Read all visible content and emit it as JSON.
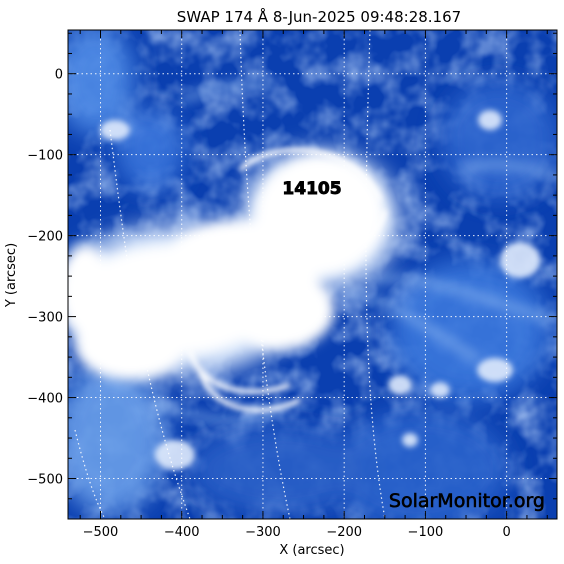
{
  "title": "SWAP 174 Å  8-Jun-2025 09:48:28.167",
  "region_label": "14105",
  "watermark": "SolarMonitor.org",
  "x_axis": {
    "label": "X (arcsec)",
    "range": [
      -540,
      62
    ],
    "ticks": [
      {
        "value": -500,
        "label": "−500"
      },
      {
        "value": -400,
        "label": "−400"
      },
      {
        "value": -300,
        "label": "−300"
      },
      {
        "value": -200,
        "label": "−200"
      },
      {
        "value": -100,
        "label": "−100"
      },
      {
        "value": 0,
        "label": "0"
      }
    ]
  },
  "y_axis": {
    "label": "Y (arcsec)",
    "range": [
      -550,
      54
    ],
    "ticks": [
      {
        "value": 0,
        "label": "0"
      },
      {
        "value": -100,
        "label": "−100"
      },
      {
        "value": -200,
        "label": "−200"
      },
      {
        "value": -300,
        "label": "−300"
      },
      {
        "value": -400,
        "label": "−400"
      },
      {
        "value": -500,
        "label": "−500"
      }
    ]
  },
  "colors": {
    "background_blue": "#0a3fb0",
    "mid_blue": "#2f6fd8",
    "light_blue": "#8fb8f2",
    "flare_white": "#ffffff",
    "grid": "#ffffff"
  }
}
